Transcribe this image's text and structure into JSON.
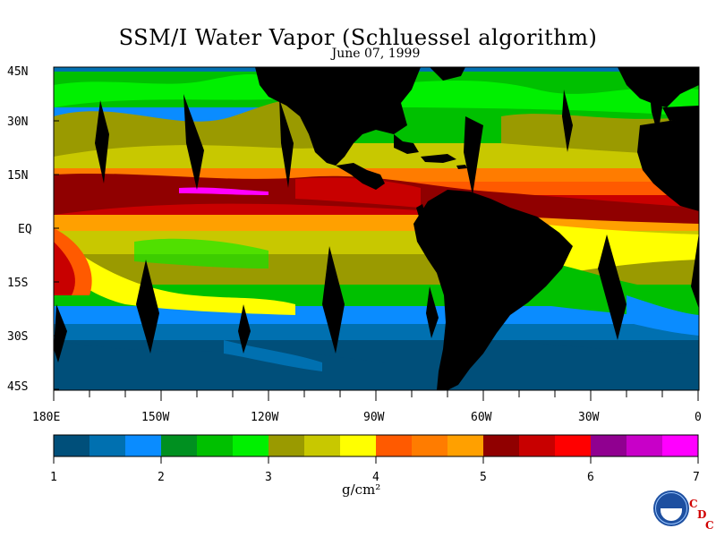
{
  "map": {
    "title": "SSM/I Water Vapor (Schluessel algorithm)",
    "date": "June 07, 1999",
    "lat_labels": [
      "45N",
      "30N",
      "15N",
      "EQ",
      "15S",
      "30S",
      "45S"
    ],
    "lon_labels": [
      "180E",
      "150W",
      "120W",
      "90W",
      "60W",
      "30W",
      "0"
    ],
    "legend": {
      "ticks": [
        "1",
        "2",
        "3",
        "4",
        "5",
        "6",
        "7"
      ],
      "units": "g/cm²",
      "colors": [
        "#004f7a",
        "#0070b0",
        "#0a8cff",
        "#009020",
        "#00c000",
        "#00f000",
        "#9a9a00",
        "#c8c800",
        "#ffff00",
        "#ff5a00",
        "#ff7c00",
        "#ffa000",
        "#900000",
        "#c80000",
        "#ff0000",
        "#900090",
        "#c800c8",
        "#ff00ff"
      ]
    },
    "logo": {
      "name": "NOAA",
      "letters": [
        "C",
        "D",
        "C"
      ]
    }
  }
}
